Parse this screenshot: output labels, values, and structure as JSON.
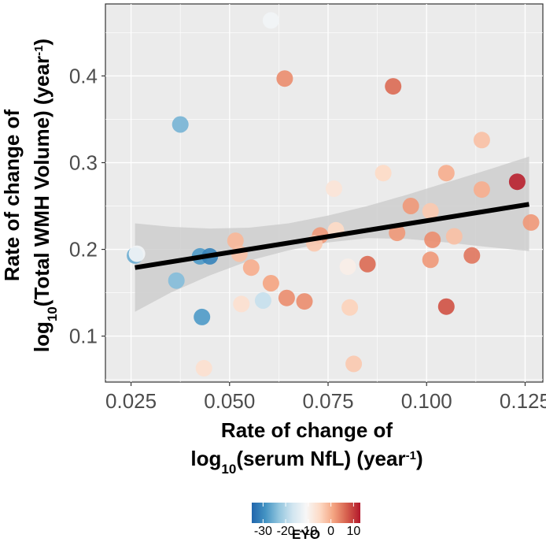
{
  "chart_data": {
    "type": "scatter",
    "xlabel": {
      "line1": "Rate of change of",
      "line2_prefix": "log",
      "line2_sub": "10",
      "line2_mid": "(serum NfL) (year",
      "line2_sup": "-1",
      "line2_end": ")"
    },
    "ylabel": {
      "line1": "Rate of change of",
      "line2_prefix": "log",
      "line2_sub": "10",
      "line2_mid": "(Total WMH Volume) (year",
      "line2_sup": "-1",
      "line2_end": ")"
    },
    "xlim": [
      0.0185,
      0.1295
    ],
    "ylim": [
      0.047,
      0.483
    ],
    "x_ticks": [
      0.025,
      0.05,
      0.075,
      0.1,
      0.125
    ],
    "x_tick_labels": [
      "0.025",
      "0.050",
      "0.075",
      "0.100",
      "0.125"
    ],
    "y_ticks": [
      0.1,
      0.2,
      0.3,
      0.4
    ],
    "y_tick_labels": [
      "0.1",
      "0.2",
      "0.3",
      "0.4"
    ],
    "grid": true,
    "points": [
      {
        "x": 0.0605,
        "y": 0.464,
        "eyo": -12
      },
      {
        "x": 0.0375,
        "y": 0.344,
        "eyo": -25
      },
      {
        "x": 0.064,
        "y": 0.397,
        "eyo": 3
      },
      {
        "x": 0.0915,
        "y": 0.388,
        "eyo": 6
      },
      {
        "x": 0.114,
        "y": 0.326,
        "eyo": -2
      },
      {
        "x": 0.089,
        "y": 0.288,
        "eyo": -5
      },
      {
        "x": 0.105,
        "y": 0.288,
        "eyo": 0
      },
      {
        "x": 0.0765,
        "y": 0.27,
        "eyo": -7
      },
      {
        "x": 0.114,
        "y": 0.269,
        "eyo": 0
      },
      {
        "x": 0.123,
        "y": 0.278,
        "eyo": 12
      },
      {
        "x": 0.096,
        "y": 0.25,
        "eyo": 2
      },
      {
        "x": 0.101,
        "y": 0.244,
        "eyo": -3
      },
      {
        "x": 0.1265,
        "y": 0.231,
        "eyo": 2
      },
      {
        "x": 0.077,
        "y": 0.222,
        "eyo": -5
      },
      {
        "x": 0.073,
        "y": 0.216,
        "eyo": 2
      },
      {
        "x": 0.0925,
        "y": 0.219,
        "eyo": 2
      },
      {
        "x": 0.107,
        "y": 0.215,
        "eyo": -2
      },
      {
        "x": 0.1015,
        "y": 0.211,
        "eyo": 3
      },
      {
        "x": 0.0515,
        "y": 0.21,
        "eyo": -1
      },
      {
        "x": 0.0715,
        "y": 0.207,
        "eyo": -3
      },
      {
        "x": 0.026,
        "y": 0.193,
        "eyo": -26
      },
      {
        "x": 0.0265,
        "y": 0.195,
        "eyo": -12
      },
      {
        "x": 0.0425,
        "y": 0.192,
        "eyo": -28
      },
      {
        "x": 0.045,
        "y": 0.192,
        "eyo": -31
      },
      {
        "x": 0.0525,
        "y": 0.195,
        "eyo": -2
      },
      {
        "x": 0.0555,
        "y": 0.179,
        "eyo": 0
      },
      {
        "x": 0.08,
        "y": 0.18,
        "eyo": -9
      },
      {
        "x": 0.085,
        "y": 0.183,
        "eyo": 6
      },
      {
        "x": 0.101,
        "y": 0.188,
        "eyo": 2
      },
      {
        "x": 0.1115,
        "y": 0.193,
        "eyo": 5
      },
      {
        "x": 0.0365,
        "y": 0.164,
        "eyo": -24
      },
      {
        "x": 0.0605,
        "y": 0.161,
        "eyo": 1
      },
      {
        "x": 0.0585,
        "y": 0.141,
        "eyo": -18
      },
      {
        "x": 0.053,
        "y": 0.137,
        "eyo": -6
      },
      {
        "x": 0.0645,
        "y": 0.144,
        "eyo": 3
      },
      {
        "x": 0.069,
        "y": 0.14,
        "eyo": 3
      },
      {
        "x": 0.0805,
        "y": 0.133,
        "eyo": -4
      },
      {
        "x": 0.105,
        "y": 0.134,
        "eyo": 8
      },
      {
        "x": 0.043,
        "y": 0.122,
        "eyo": -28
      },
      {
        "x": 0.0435,
        "y": 0.063,
        "eyo": -6
      },
      {
        "x": 0.0815,
        "y": 0.068,
        "eyo": -3
      }
    ],
    "regression": {
      "x0": 0.026,
      "y0": 0.179,
      "x1": 0.126,
      "y1": 0.252
    },
    "confidence_band": {
      "x": [
        0.026,
        0.035,
        0.045,
        0.055,
        0.065,
        0.075,
        0.085,
        0.095,
        0.105,
        0.115,
        0.126
      ],
      "lower": [
        0.128,
        0.15,
        0.17,
        0.187,
        0.199,
        0.208,
        0.213,
        0.212,
        0.208,
        0.203,
        0.198
      ],
      "upper": [
        0.23,
        0.226,
        0.224,
        0.225,
        0.23,
        0.239,
        0.25,
        0.263,
        0.277,
        0.291,
        0.307
      ]
    },
    "colorbar": {
      "title": "EYO",
      "min": -35,
      "max": 13,
      "ticks": [
        -30,
        -20,
        -10,
        0,
        10
      ],
      "tick_labels": [
        "-30",
        "-20",
        "-10",
        "0",
        "10"
      ],
      "colors": [
        "#2166ac",
        "#4393c3",
        "#92c5de",
        "#d1e5f0",
        "#f7f7f7",
        "#fddbc7",
        "#f4a582",
        "#d6604d",
        "#b2182b"
      ]
    },
    "colors": {
      "panel_background": "#ebebeb",
      "grid_major": "#ffffff",
      "line": "#000000",
      "band": "#cccccc"
    }
  }
}
